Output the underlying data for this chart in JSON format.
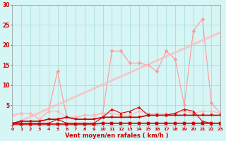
{
  "x": [
    0,
    1,
    2,
    3,
    4,
    5,
    6,
    7,
    8,
    9,
    10,
    11,
    12,
    13,
    14,
    15,
    16,
    17,
    18,
    19,
    20,
    21,
    22,
    23
  ],
  "series": {
    "pink_irregular": [
      2.5,
      3.0,
      3.0,
      1.5,
      3.5,
      13.5,
      2.0,
      2.0,
      2.5,
      2.5,
      3.0,
      18.5,
      18.5,
      15.5,
      15.5,
      15.0,
      13.5,
      18.5,
      16.5,
      5.0,
      23.5,
      26.5,
      5.5,
      3.0
    ],
    "pink_flat": [
      2.5,
      3.0,
      3.0,
      1.5,
      3.5,
      3.5,
      2.0,
      2.0,
      2.5,
      2.5,
      3.0,
      3.0,
      2.5,
      2.5,
      3.5,
      3.0,
      3.0,
      3.0,
      3.0,
      3.5,
      3.0,
      3.5,
      3.5,
      3.0
    ],
    "diag1": [
      0.3,
      1.3,
      2.3,
      3.3,
      4.3,
      5.3,
      6.3,
      7.3,
      8.3,
      9.3,
      10.3,
      11.3,
      12.3,
      13.3,
      14.3,
      15.3,
      16.3,
      17.3,
      18.3,
      19.3,
      20.3,
      21.3,
      22.3,
      23.3
    ],
    "diag2": [
      0.0,
      1.0,
      2.0,
      3.0,
      4.0,
      5.0,
      6.0,
      7.0,
      8.0,
      9.0,
      10.0,
      11.0,
      12.0,
      13.0,
      14.0,
      15.0,
      16.0,
      17.0,
      18.0,
      19.0,
      20.0,
      21.0,
      22.0,
      23.0
    ],
    "red_irregular": [
      0.5,
      0.5,
      0.5,
      0.5,
      0.5,
      1.5,
      0.5,
      0.5,
      0.5,
      0.5,
      2.0,
      4.0,
      3.0,
      3.5,
      4.5,
      2.5,
      2.5,
      2.5,
      3.0,
      4.0,
      3.5,
      1.0,
      0.5,
      0.5
    ],
    "red_flat1": [
      0.5,
      1.0,
      1.0,
      1.0,
      1.5,
      1.5,
      2.0,
      1.5,
      1.5,
      1.5,
      2.0,
      2.0,
      2.0,
      2.0,
      2.0,
      2.5,
      2.5,
      2.5,
      2.5,
      2.5,
      2.5,
      2.5,
      2.5,
      2.5
    ],
    "red_flat2": [
      0.3,
      0.3,
      0.3,
      0.3,
      0.3,
      0.3,
      0.3,
      0.3,
      0.3,
      0.3,
      0.5,
      0.5,
      0.5,
      0.5,
      0.5,
      0.5,
      0.5,
      0.5,
      0.5,
      0.5,
      0.5,
      0.5,
      0.5,
      0.5
    ]
  },
  "colors": {
    "pink_irregular": "#ff9999",
    "pink_flat": "#ffbbbb",
    "diag1": "#ffbbbb",
    "diag2": "#ffbbbb",
    "red_irregular": "#dd0000",
    "red_flat1": "#cc0000",
    "red_flat2": "#cc0000"
  },
  "markers": {
    "pink_irregular": "D",
    "pink_flat": "D",
    "diag1": null,
    "diag2": null,
    "red_irregular": "^",
    "red_flat1": "v",
    "red_flat2": "s"
  },
  "linewidths": {
    "pink_irregular": 0.8,
    "pink_flat": 0.8,
    "diag1": 0.8,
    "diag2": 0.8,
    "red_irregular": 0.8,
    "red_flat1": 1.2,
    "red_flat2": 1.2
  },
  "xlabel": "Vent moyen/en rafales ( km/h )",
  "bg_color": "#d6f5f5",
  "grid_color": "#aadddd",
  "text_color": "#cc0000",
  "ylim": [
    0,
    30
  ],
  "xlim": [
    0,
    23
  ]
}
